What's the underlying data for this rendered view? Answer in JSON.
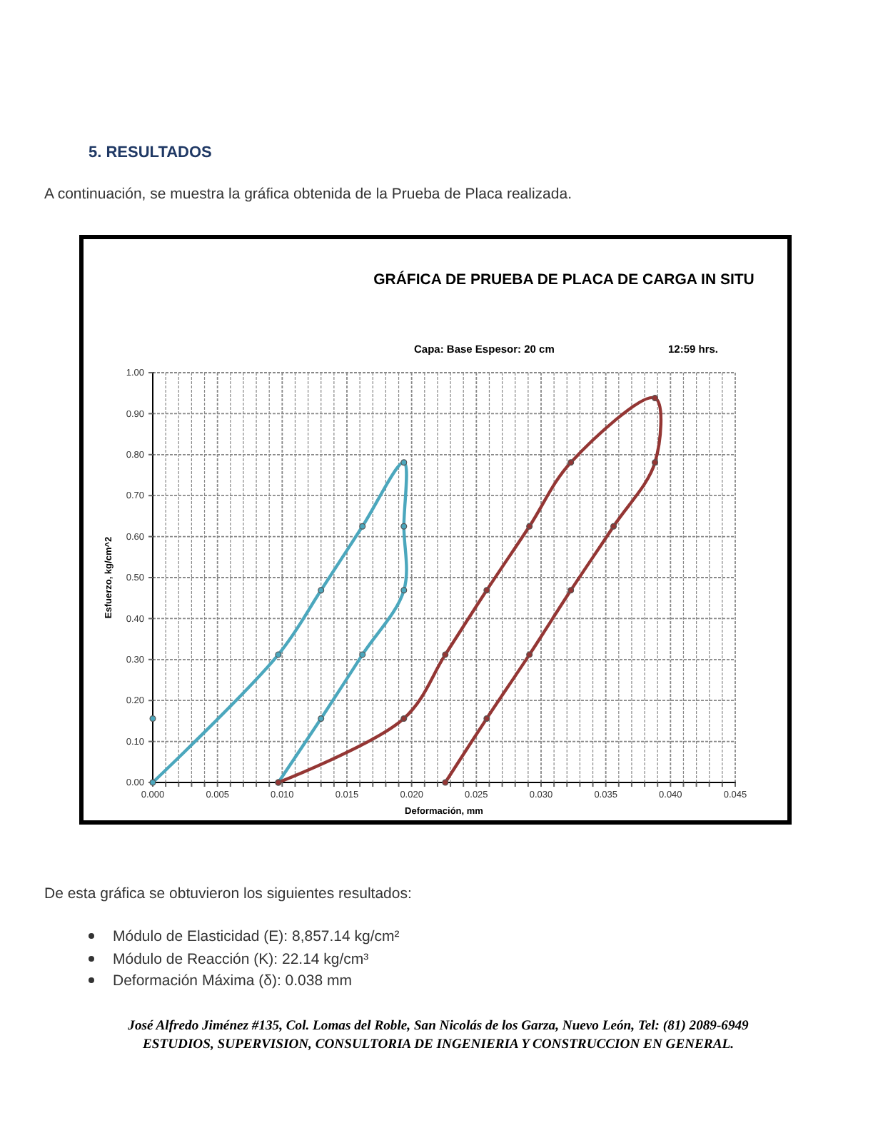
{
  "chart_data": {
    "type": "line",
    "title": "GRÁFICA DE PRUEBA DE PLACA DE CARGA IN SITU",
    "subtitle": "Capa: Base   Espesor: 20 cm",
    "xlabel": "Deformación, mm",
    "ylabel": "Esfuerzo, kg/cm^2",
    "annotations": [
      "5.   RESULTADOS",
      "A continuación, se muestra la gráfica obtenida de la Prueba de Placa realizada.",
      "12:59 hrs.",
      "De esta gráfica se obtuvieron los siguientes resultados:",
      "Módulo de Elasticidad (E): 8,857.14 kg/cm²",
      "Módulo de Reacción (K): 22.14 kg/cm³",
      "Deformación Máxima (δ): 0.038 mm",
      "José Alfredo Jiménez #135, Col. Lomas del Roble, San Nicolás de los Garza, Nuevo León, Tel: (81) 2089-6949",
      "ESTUDIOS, SUPERVISION, CONSULTORIA DE  INGENIERIA Y CONSTRUCCION EN GENERAL."
    ],
    "series": [
      {
        "color": "#4ba7bd",
        "x": [
          0,
          0.0097,
          0.013,
          0.0162,
          0.0194,
          0.0194,
          0.0194,
          0.0162,
          0.013,
          0.0097
        ],
        "values": [
          0,
          0.312,
          0.469,
          0.625,
          0.781,
          0.625,
          0.469,
          0.312,
          0.156,
          0
        ]
      },
      {
        "color": "#943634",
        "x": [
          0.0097,
          0.0194,
          0.0226,
          0.0258,
          0.0291,
          0.0323,
          0.0388,
          0.0388,
          0.0356,
          0.0323,
          0.0291,
          0.0258,
          0.0226
        ],
        "values": [
          0,
          0.156,
          0.312,
          0.469,
          0.625,
          0.781,
          0.938,
          0.781,
          0.625,
          0.469,
          0.312,
          0.156,
          0
        ]
      },
      {
        "type": "scatter",
        "color": "#4ba7bd",
        "x": [
          0
        ],
        "values": [
          0.156
        ]
      }
    ],
    "marker": "circle",
    "line_style": "solid",
    "grid": true,
    "xlim": [
      0,
      0.045
    ],
    "ylim": [
      0,
      1
    ],
    "xticks": [
      {
        "value": 0,
        "label": "0.000"
      },
      {
        "value": 0.001,
        "label": null
      },
      {
        "value": 0.002,
        "label": null
      },
      {
        "value": 0.003,
        "label": null
      },
      {
        "value": 0.004,
        "label": null
      },
      {
        "value": 0.005,
        "label": "0.005"
      },
      {
        "value": 0.006,
        "label": null
      },
      {
        "value": 0.007,
        "label": null
      },
      {
        "value": 0.008,
        "label": null
      },
      {
        "value": 0.009,
        "label": null
      },
      {
        "value": 0.01,
        "label": "0.010"
      },
      {
        "value": 0.011,
        "label": null
      },
      {
        "value": 0.012,
        "label": null
      },
      {
        "value": 0.013,
        "label": null
      },
      {
        "value": 0.014,
        "label": null
      },
      {
        "value": 0.015,
        "label": "0.015"
      },
      {
        "value": 0.016,
        "label": null
      },
      {
        "value": 0.017,
        "label": null
      },
      {
        "value": 0.018,
        "label": null
      },
      {
        "value": 0.019,
        "label": null
      },
      {
        "value": 0.02,
        "label": "0.020"
      },
      {
        "value": 0.021,
        "label": null
      },
      {
        "value": 0.022,
        "label": null
      },
      {
        "value": 0.023,
        "label": null
      },
      {
        "value": 0.024,
        "label": null
      },
      {
        "value": 0.025,
        "label": "0.025"
      },
      {
        "value": 0.026,
        "label": null
      },
      {
        "value": 0.027,
        "label": null
      },
      {
        "value": 0.028,
        "label": null
      },
      {
        "value": 0.029,
        "label": null
      },
      {
        "value": 0.03,
        "label": "0.030"
      },
      {
        "value": 0.031,
        "label": null
      },
      {
        "value": 0.032,
        "label": null
      },
      {
        "value": 0.033,
        "label": null
      },
      {
        "value": 0.034,
        "label": null
      },
      {
        "value": 0.035,
        "label": "0.035"
      },
      {
        "value": 0.036,
        "label": null
      },
      {
        "value": 0.037,
        "label": null
      },
      {
        "value": 0.038,
        "label": null
      },
      {
        "value": 0.039,
        "label": null
      },
      {
        "value": 0.04,
        "label": "0.040"
      },
      {
        "value": 0.041,
        "label": null
      },
      {
        "value": 0.042,
        "label": null
      },
      {
        "value": 0.043,
        "label": null
      },
      {
        "value": 0.044,
        "label": null
      },
      {
        "value": 0.045,
        "label": "0.045"
      }
    ],
    "yticks": [
      {
        "value": 0,
        "label": "0.00"
      },
      {
        "value": 0.1,
        "label": "0.10"
      },
      {
        "value": 0.2,
        "label": "0.20"
      },
      {
        "value": 0.3,
        "label": "0.30"
      },
      {
        "value": 0.4,
        "label": "0.40"
      },
      {
        "value": 0.5,
        "label": "0.50"
      },
      {
        "value": 0.6,
        "label": "0.60"
      },
      {
        "value": 0.7,
        "label": "0.70"
      },
      {
        "value": 0.8,
        "label": "0.80"
      },
      {
        "value": 0.9,
        "label": "0.90"
      },
      {
        "value": 1,
        "label": "1.00"
      }
    ]
  }
}
